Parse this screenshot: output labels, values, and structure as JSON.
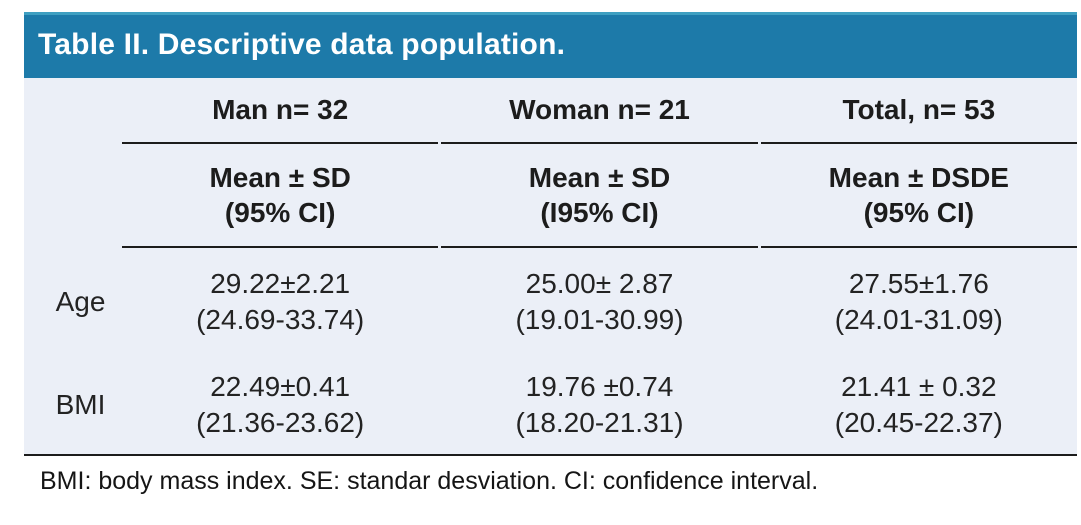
{
  "title": "Table II. Descriptive data population.",
  "colors": {
    "header_bg": "#1d7aa9",
    "header_top_edge": "#3e9fc1",
    "body_bg": "#ebeff7",
    "rule": "#1c1c1c",
    "title_text": "#ffffff"
  },
  "table": {
    "group_headers": [
      "Man n= 32",
      "Woman n= 21",
      "Total, n= 53"
    ],
    "subheaders": [
      [
        "Mean ± SD",
        "(95% CI)"
      ],
      [
        "Mean ± SD",
        "(I95% CI)"
      ],
      [
        "Mean ± DSDE",
        "(95% CI)"
      ]
    ],
    "rows": [
      {
        "label": "Age",
        "values": [
          "29.22±2.21",
          "25.00± 2.87",
          "27.55±1.76"
        ],
        "cis": [
          "(24.69-33.74)",
          "(19.01-30.99)",
          "(24.01-31.09)"
        ]
      },
      {
        "label": "BMI",
        "values": [
          "22.49±0.41",
          "19.76 ±0.74",
          "21.41 ± 0.32"
        ],
        "cis": [
          "(21.36-23.62)",
          "(18.20-21.31)",
          "(20.45-22.37)"
        ]
      }
    ]
  },
  "footnote": "BMI: body mass index. SE: standar desviation. CI: confidence interval.",
  "chart_data": {
    "type": "table",
    "title": "Table II. Descriptive data population.",
    "columns": [
      "",
      "Man n= 32",
      "Woman n= 21",
      "Total, n= 53"
    ],
    "subcolumns": [
      "",
      "Mean ± SD (95% CI)",
      "Mean ± SD (I95% CI)",
      "Mean ± DSDE (95% CI)"
    ],
    "rows": [
      {
        "label": "Age",
        "man": {
          "mean": 29.22,
          "sd": 2.21,
          "ci_low": 24.69,
          "ci_high": 33.74
        },
        "woman": {
          "mean": 25.0,
          "sd": 2.87,
          "ci_low": 19.01,
          "ci_high": 30.99
        },
        "total": {
          "mean": 27.55,
          "sd": 1.76,
          "ci_low": 24.01,
          "ci_high": 31.09
        }
      },
      {
        "label": "BMI",
        "man": {
          "mean": 22.49,
          "sd": 0.41,
          "ci_low": 21.36,
          "ci_high": 23.62
        },
        "woman": {
          "mean": 19.76,
          "sd": 0.74,
          "ci_low": 18.2,
          "ci_high": 21.31
        },
        "total": {
          "mean": 21.41,
          "sd": 0.32,
          "ci_low": 20.45,
          "ci_high": 22.37
        }
      }
    ],
    "footnote": "BMI: body mass index. SE: standar desviation. CI: confidence interval.",
    "sample_sizes": {
      "man": 32,
      "woman": 21,
      "total": 53
    }
  }
}
